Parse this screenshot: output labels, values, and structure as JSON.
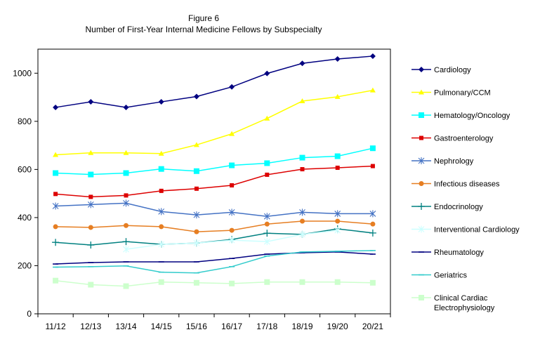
{
  "chart_data": {
    "type": "line",
    "title": "Figure 6",
    "subtitle": "Number of First-Year Internal Medicine Fellows by Subspecialty",
    "xlabel": "",
    "ylabel": "",
    "ylim": [
      0,
      1100
    ],
    "yticks": [
      0,
      200,
      400,
      600,
      800,
      1000
    ],
    "grid": false,
    "legend_position": "right",
    "categories": [
      "11/12",
      "12/13",
      "13/14",
      "14/15",
      "15/16",
      "16/17",
      "17/18",
      "18/19",
      "19/20",
      "20/21"
    ],
    "series": [
      {
        "name": "Cardiology",
        "color": "#000080",
        "marker": "diamond",
        "values": [
          858,
          881,
          858,
          881,
          903,
          943,
          999,
          1041,
          1059,
          1071
        ]
      },
      {
        "name": "Pulmonary/CCM",
        "color": "#FFFF00",
        "marker": "triangle",
        "values": [
          661,
          669,
          669,
          666,
          702,
          748,
          812,
          884,
          902,
          929
        ]
      },
      {
        "name": "Hematology/Oncology",
        "color": "#00FFFF",
        "marker": "square",
        "values": [
          585,
          579,
          585,
          602,
          593,
          617,
          626,
          649,
          655,
          688
        ]
      },
      {
        "name": "Gastroenterology",
        "color": "#DD0000",
        "marker": "smallsquare",
        "values": [
          498,
          486,
          492,
          511,
          520,
          534,
          578,
          601,
          607,
          614
        ]
      },
      {
        "name": "Nephrology",
        "color": "#4472C4",
        "marker": "asterisk",
        "values": [
          448,
          454,
          460,
          425,
          411,
          422,
          405,
          422,
          416,
          416
        ]
      },
      {
        "name": "Infectious diseases",
        "color": "#E67E22",
        "marker": "circle",
        "values": [
          362,
          359,
          367,
          362,
          341,
          347,
          373,
          385,
          385,
          373
        ]
      },
      {
        "name": "Endocrinology",
        "color": "#008080",
        "marker": "plus",
        "values": [
          297,
          286,
          300,
          289,
          294,
          309,
          335,
          330,
          353,
          336
        ]
      },
      {
        "name": "Interventional Cardiology",
        "color": "#CCFFFF",
        "marker": "asterisk",
        "values": [
          null,
          null,
          268,
          289,
          294,
          306,
          300,
          330,
          347,
          null
        ]
      },
      {
        "name": "Rheumatology",
        "color": "#000080",
        "marker": "dash",
        "values": [
          207,
          213,
          216,
          216,
          216,
          230,
          248,
          254,
          257,
          248
        ]
      },
      {
        "name": "Geriatrics",
        "color": "#33CCCC",
        "marker": "dash",
        "values": [
          194,
          196,
          199,
          173,
          170,
          196,
          240,
          257,
          260,
          263
        ]
      },
      {
        "name": "Clinical Cardiac Electrophysiology",
        "color": "#CCFFCC",
        "marker": "square",
        "values": [
          138,
          121,
          115,
          132,
          129,
          126,
          132,
          132,
          132,
          129
        ]
      }
    ]
  }
}
